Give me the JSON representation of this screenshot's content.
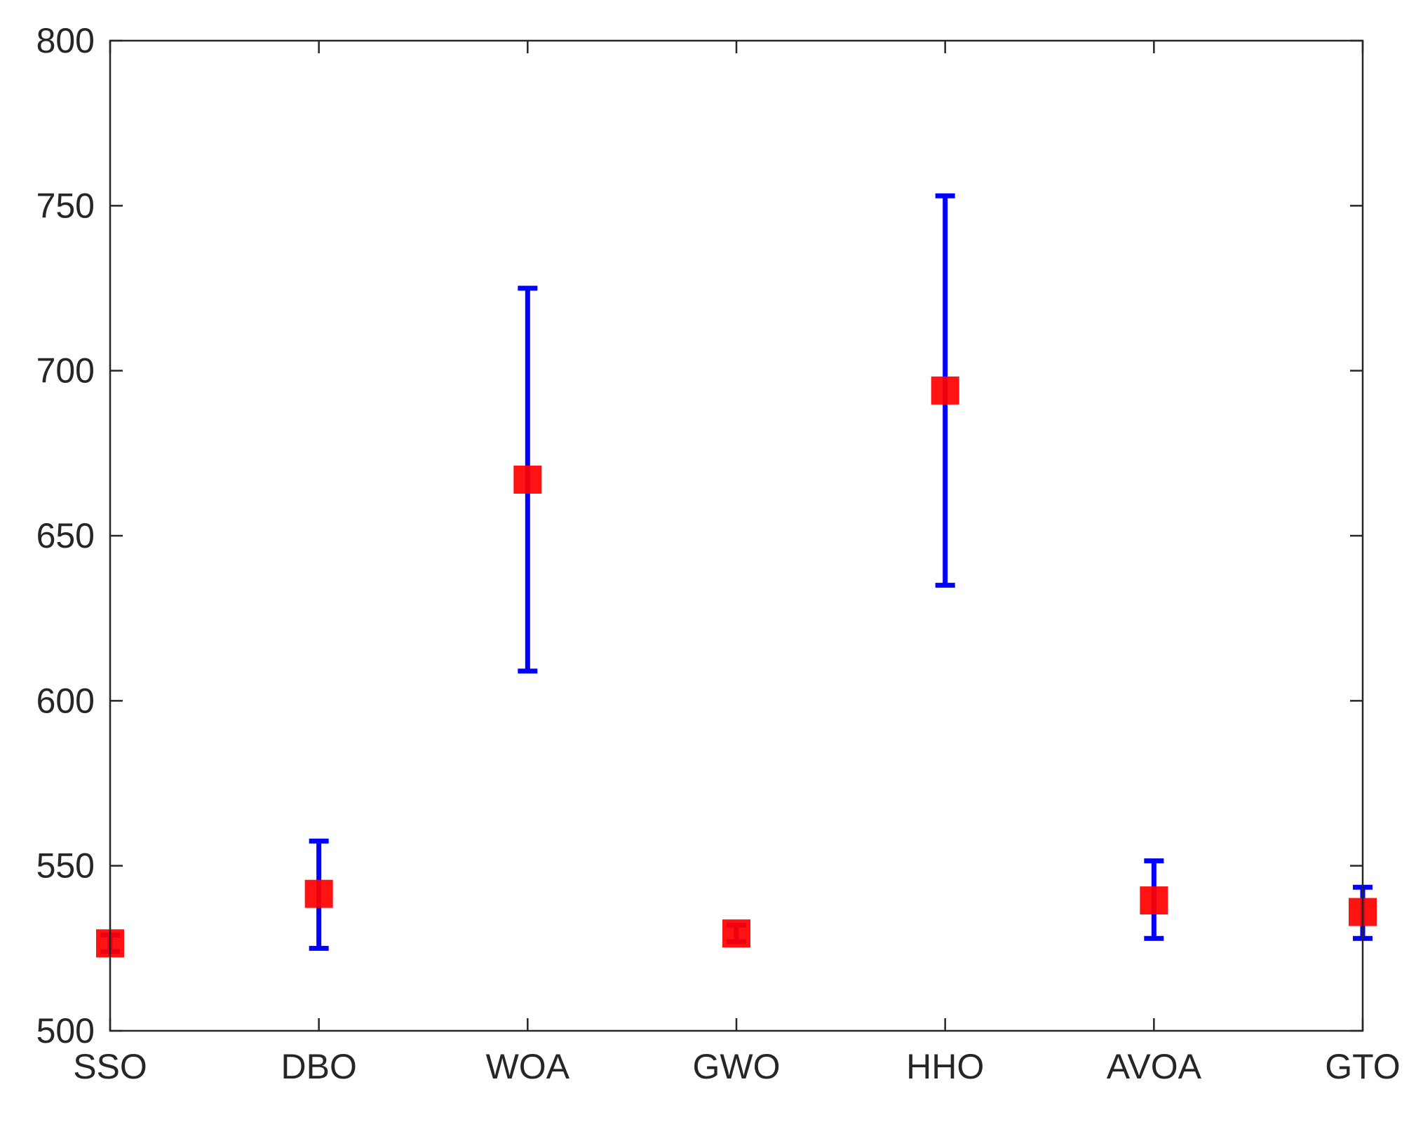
{
  "chart_data": {
    "type": "errorbar",
    "categories": [
      "SSO",
      "DBO",
      "WOA",
      "GWO",
      "HHO",
      "AVOA",
      "GTO"
    ],
    "series": [
      {
        "mean": [
          526.5,
          541.5,
          667.0,
          529.5,
          694.0,
          539.5,
          536.0
        ],
        "lower": [
          524.0,
          525.0,
          609.0,
          527.0,
          635.0,
          528.0,
          528.0
        ],
        "upper": [
          529.0,
          557.5,
          725.0,
          532.0,
          753.0,
          551.5,
          543.5
        ]
      }
    ],
    "ylim": [
      500,
      800
    ],
    "yticks": [
      500,
      550,
      600,
      650,
      700,
      750,
      800
    ],
    "title": "",
    "xlabel": "",
    "ylabel": "",
    "grid": false,
    "colors": {
      "marker": "#ff0000",
      "errorbar": "#0000ff",
      "axes": "#262626"
    }
  }
}
